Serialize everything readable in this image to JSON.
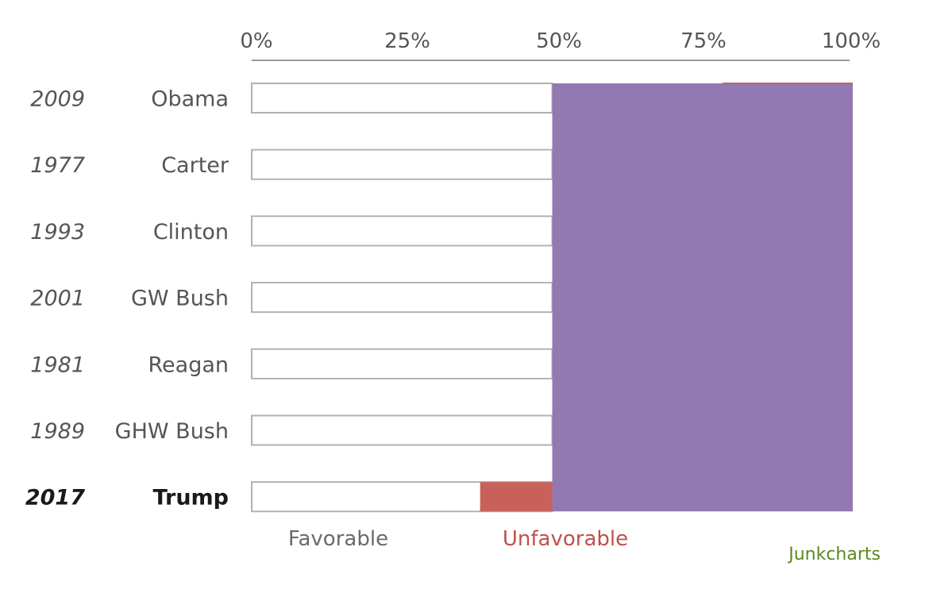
{
  "chart_data": {
    "type": "bar",
    "subtype": "horizontal-stacked-percent",
    "x_axis": {
      "ticks": [
        "0%",
        "25%",
        "50%",
        "75%",
        "100%"
      ],
      "range": [
        0,
        100
      ],
      "position": "top"
    },
    "rows": [
      {
        "year": "2009",
        "president": "Obama",
        "favorable": 100,
        "unfavorable": 0,
        "highlight": false
      },
      {
        "year": "1977",
        "president": "Carter",
        "favorable": 100,
        "unfavorable": 0,
        "highlight": false
      },
      {
        "year": "1993",
        "president": "Clinton",
        "favorable": 100,
        "unfavorable": 0,
        "highlight": false
      },
      {
        "year": "2001",
        "president": "GW Bush",
        "favorable": 100,
        "unfavorable": 0,
        "highlight": false
      },
      {
        "year": "1981",
        "president": "Reagan",
        "favorable": 100,
        "unfavorable": 0,
        "highlight": false
      },
      {
        "year": "1989",
        "president": "GHW Bush",
        "favorable": 100,
        "unfavorable": 0,
        "highlight": false
      },
      {
        "year": "2017",
        "president": "Trump",
        "favorable": 38,
        "unfavorable": 12,
        "highlight": true
      }
    ],
    "overlay": {
      "from": 50,
      "to": 100,
      "color": "#9379b1"
    },
    "legend": {
      "favorable": "Favorable",
      "unfavorable": "Unfavorable",
      "placement": "bottom"
    },
    "colors": {
      "favorable": "#ffffff",
      "unfavorable": "#c9615b",
      "overlay": "#9379b1",
      "outline": "#b0b0b0",
      "axis": "#9a9a9a"
    },
    "grid": false
  },
  "credit": "Junkcharts"
}
